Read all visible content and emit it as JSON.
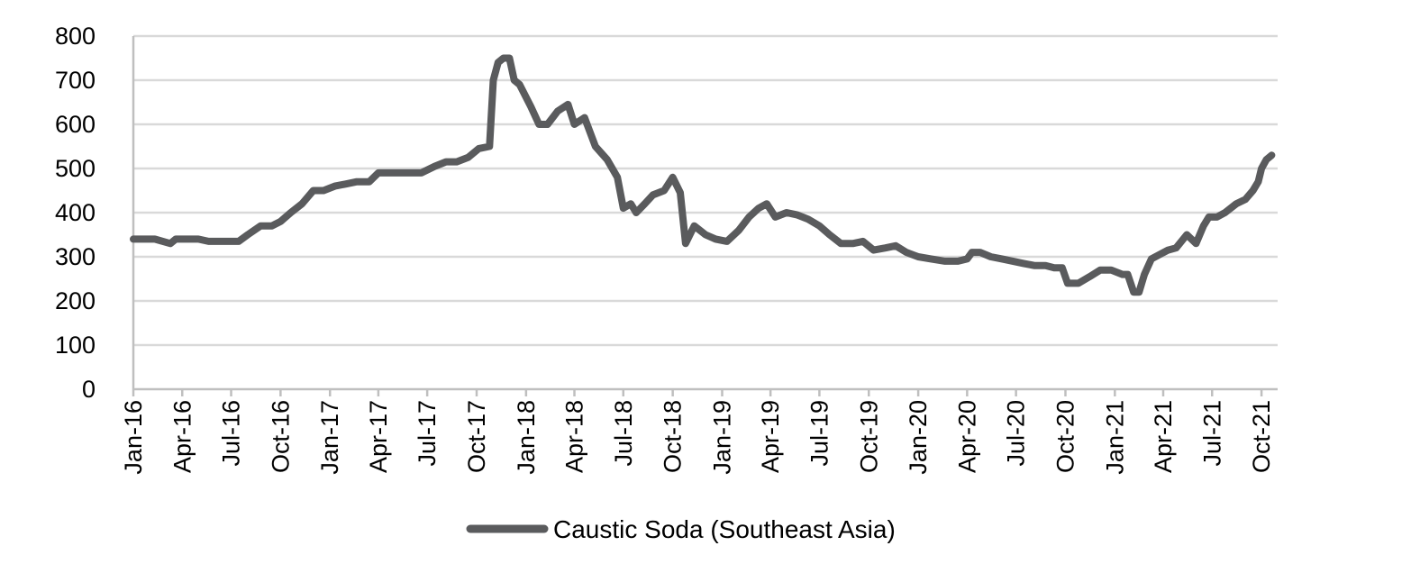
{
  "chart_data": {
    "type": "line",
    "title": "",
    "xlabel": "",
    "ylabel": "",
    "ylim": [
      0,
      800
    ],
    "yticks": [
      0,
      100,
      200,
      300,
      400,
      500,
      600,
      700,
      800
    ],
    "xlim": [
      "2016-01-01",
      "2021-10-31"
    ],
    "x_tick_labels": [
      "Jan-16",
      "Apr-16",
      "Jul-16",
      "Oct-16",
      "Jan-17",
      "Apr-17",
      "Jul-17",
      "Oct-17",
      "Jan-18",
      "Apr-18",
      "Jul-18",
      "Oct-18",
      "Jan-19",
      "Apr-19",
      "Jul-19",
      "Oct-19",
      "Jan-20",
      "Apr-20",
      "Jul-20",
      "Oct-20",
      "Jan-21",
      "Apr-21",
      "Jul-21",
      "Oct-21"
    ],
    "x_tick_dates": [
      "2016-01-01",
      "2016-04-01",
      "2016-07-01",
      "2016-10-01",
      "2017-01-01",
      "2017-04-01",
      "2017-07-01",
      "2017-10-01",
      "2018-01-01",
      "2018-04-01",
      "2018-07-01",
      "2018-10-01",
      "2019-01-01",
      "2019-04-01",
      "2019-07-01",
      "2019-10-01",
      "2020-01-01",
      "2020-04-01",
      "2020-07-01",
      "2020-10-01",
      "2021-01-01",
      "2021-04-01",
      "2021-07-01",
      "2021-10-01"
    ],
    "grid": "horizontal",
    "legend_position": "bottom",
    "colors": {
      "series": "#5a5b5d",
      "grid": "#d9d9d9",
      "axis": "#bfbfbf"
    },
    "series": [
      {
        "name": "Caustic Soda (Southeast Asia)",
        "x": [
          "2016-01-01",
          "2016-01-20",
          "2016-02-10",
          "2016-03-10",
          "2016-03-20",
          "2016-05-01",
          "2016-05-20",
          "2016-06-20",
          "2016-07-15",
          "2016-08-01",
          "2016-08-25",
          "2016-09-15",
          "2016-10-01",
          "2016-10-20",
          "2016-11-10",
          "2016-12-01",
          "2016-12-20",
          "2017-01-10",
          "2017-02-01",
          "2017-02-20",
          "2017-03-15",
          "2017-04-01",
          "2017-04-15",
          "2017-05-20",
          "2017-06-20",
          "2017-07-15",
          "2017-08-05",
          "2017-08-25",
          "2017-09-15",
          "2017-10-05",
          "2017-10-25",
          "2017-11-01",
          "2017-11-10",
          "2017-11-20",
          "2017-12-01",
          "2017-12-10",
          "2017-12-20",
          "2018-01-10",
          "2018-01-25",
          "2018-02-10",
          "2018-03-01",
          "2018-03-20",
          "2018-04-01",
          "2018-04-20",
          "2018-05-10",
          "2018-06-01",
          "2018-06-20",
          "2018-07-01",
          "2018-07-15",
          "2018-07-25",
          "2018-08-10",
          "2018-08-25",
          "2018-09-15",
          "2018-10-01",
          "2018-10-15",
          "2018-10-25",
          "2018-11-10",
          "2018-12-01",
          "2018-12-20",
          "2019-01-10",
          "2019-02-01",
          "2019-02-20",
          "2019-03-10",
          "2019-03-25",
          "2019-04-10",
          "2019-05-01",
          "2019-05-20",
          "2019-06-10",
          "2019-07-01",
          "2019-07-20",
          "2019-08-10",
          "2019-09-01",
          "2019-09-20",
          "2019-10-10",
          "2019-11-01",
          "2019-11-20",
          "2019-12-10",
          "2020-01-01",
          "2020-01-25",
          "2020-02-20",
          "2020-03-15",
          "2020-04-01",
          "2020-04-10",
          "2020-04-25",
          "2020-05-15",
          "2020-06-05",
          "2020-06-25",
          "2020-07-15",
          "2020-08-05",
          "2020-08-25",
          "2020-09-10",
          "2020-09-25",
          "2020-10-05",
          "2020-10-25",
          "2020-11-15",
          "2020-12-05",
          "2020-12-25",
          "2021-01-15",
          "2021-01-25",
          "2021-02-05",
          "2021-02-15",
          "2021-02-25",
          "2021-03-10",
          "2021-03-25",
          "2021-04-10",
          "2021-04-25",
          "2021-05-15",
          "2021-06-01",
          "2021-06-15",
          "2021-06-25",
          "2021-07-10",
          "2021-07-25",
          "2021-08-15",
          "2021-09-01",
          "2021-09-15",
          "2021-09-25",
          "2021-10-01",
          "2021-10-10",
          "2021-10-20"
        ],
        "values": [
          340,
          340,
          340,
          330,
          340,
          340,
          335,
          335,
          335,
          350,
          370,
          370,
          380,
          400,
          420,
          450,
          450,
          460,
          465,
          470,
          470,
          490,
          490,
          490,
          490,
          505,
          515,
          515,
          525,
          545,
          550,
          700,
          740,
          750,
          750,
          700,
          690,
          640,
          600,
          600,
          630,
          645,
          600,
          615,
          550,
          520,
          480,
          410,
          420,
          400,
          420,
          440,
          450,
          480,
          445,
          330,
          370,
          350,
          340,
          335,
          360,
          390,
          410,
          420,
          390,
          400,
          395,
          385,
          370,
          350,
          330,
          330,
          335,
          315,
          320,
          325,
          310,
          300,
          295,
          290,
          290,
          295,
          310,
          310,
          300,
          295,
          290,
          285,
          280,
          280,
          275,
          275,
          240,
          240,
          255,
          270,
          270,
          260,
          260,
          220,
          220,
          260,
          295,
          305,
          315,
          320,
          350,
          330,
          370,
          390,
          390,
          400,
          420,
          430,
          450,
          470,
          500,
          520,
          530
        ]
      }
    ]
  }
}
